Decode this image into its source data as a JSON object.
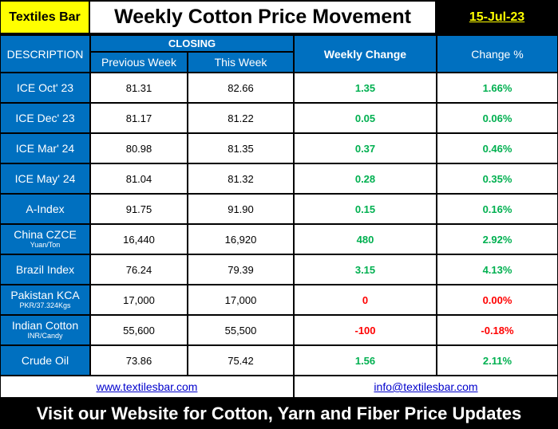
{
  "header": {
    "brand": "Textiles Bar",
    "title": "Weekly Cotton Price Movement",
    "date": "15-Jul-23"
  },
  "columns": {
    "description": "DESCRIPTION",
    "closing": "CLOSING",
    "previous_week": "Previous Week",
    "this_week": "This Week",
    "weekly_change": "Weekly Change",
    "change_pct": "Change %"
  },
  "rows": [
    {
      "name": "ICE Oct' 23",
      "sub": "",
      "prev": "81.31",
      "curr": "82.66",
      "change": "1.35",
      "pct": "1.66%",
      "status": "pos"
    },
    {
      "name": "ICE Dec' 23",
      "sub": "",
      "prev": "81.17",
      "curr": "81.22",
      "change": "0.05",
      "pct": "0.06%",
      "status": "pos"
    },
    {
      "name": "ICE Mar' 24",
      "sub": "",
      "prev": "80.98",
      "curr": "81.35",
      "change": "0.37",
      "pct": "0.46%",
      "status": "pos"
    },
    {
      "name": "ICE May' 24",
      "sub": "",
      "prev": "81.04",
      "curr": "81.32",
      "change": "0.28",
      "pct": "0.35%",
      "status": "pos"
    },
    {
      "name": "A-Index",
      "sub": "",
      "prev": "91.75",
      "curr": "91.90",
      "change": "0.15",
      "pct": "0.16%",
      "status": "pos"
    },
    {
      "name": "China CZCE",
      "sub": "Yuan/Ton",
      "prev": "16,440",
      "curr": "16,920",
      "change": "480",
      "pct": "2.92%",
      "status": "pos"
    },
    {
      "name": "Brazil Index",
      "sub": "",
      "prev": "76.24",
      "curr": "79.39",
      "change": "3.15",
      "pct": "4.13%",
      "status": "pos"
    },
    {
      "name": "Pakistan  KCA",
      "sub": "PKR/37.324Kgs",
      "prev": "17,000",
      "curr": "17,000",
      "change": "0",
      "pct": "0.00%",
      "status": "zero"
    },
    {
      "name": "Indian Cotton",
      "sub": "INR/Candy",
      "prev": "55,600",
      "curr": "55,500",
      "change": "-100",
      "pct": "-0.18%",
      "status": "neg"
    },
    {
      "name": "Crude Oil",
      "sub": "",
      "prev": "73.86",
      "curr": "75.42",
      "change": "1.56",
      "pct": "2.11%",
      "status": "pos"
    }
  ],
  "links": {
    "website": "www.textilesbar.com",
    "email": "info@textilesbar.com"
  },
  "footer": {
    "text": "Visit our Website for Cotton, Yarn and Fiber Price Updates"
  },
  "colors": {
    "header_blue": "#0070c0",
    "brand_yellow": "#ffff00",
    "positive_green": "#00b050",
    "negative_red": "#ff0000"
  }
}
